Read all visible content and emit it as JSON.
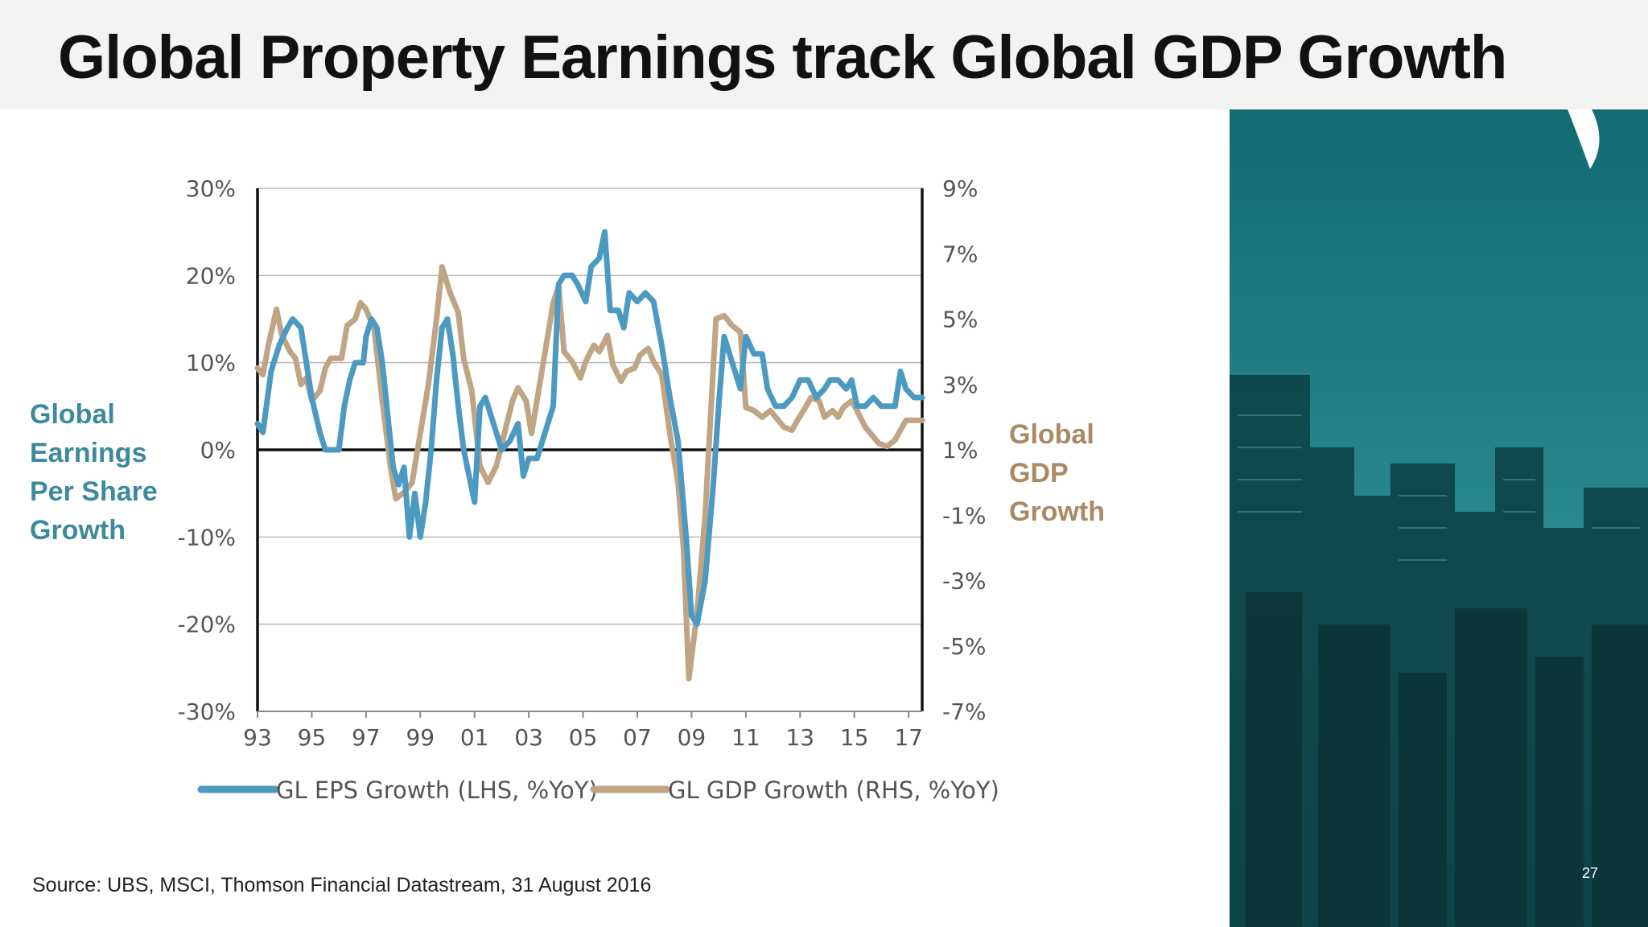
{
  "slide": {
    "title": "Global Property Earnings track Global GDP Growth",
    "left_label": [
      "Global",
      "Earnings",
      "Per Share",
      "Growth"
    ],
    "right_label": [
      "Global",
      "GDP",
      "Growth"
    ],
    "source": "Source: UBS, MSCI, Thomson Financial Datastream, 31 August 2016",
    "page_number": "27"
  },
  "colors": {
    "eps": "#4c9ac2",
    "gdp": "#bfa584",
    "left_label": "#3c8b9c",
    "right_label": "#a98a64",
    "photo_base": "#1c6c72",
    "header_band": "#f3f3f3"
  },
  "chart_data": {
    "type": "line",
    "x_tick_labels": [
      "93",
      "95",
      "97",
      "99",
      "01",
      "03",
      "05",
      "07",
      "09",
      "11",
      "13",
      "15",
      "17"
    ],
    "x_range": [
      1993,
      2017.5
    ],
    "y_left": {
      "range": [
        -30,
        30
      ],
      "ticks": [
        30,
        20,
        10,
        0,
        -10,
        -20,
        -30
      ],
      "tick_labels": [
        "30%",
        "20%",
        "10%",
        "0%",
        "-10%",
        "-20%",
        "-30%"
      ]
    },
    "y_right": {
      "range": [
        -7,
        9
      ],
      "ticks": [
        9,
        7,
        5,
        3,
        1,
        -1,
        -3,
        -5,
        -7
      ],
      "tick_labels": [
        "9%",
        "7%",
        "5%",
        "3%",
        "1%",
        "-1%",
        "-3%",
        "-5%",
        "-7%"
      ]
    },
    "grid": true,
    "legend_position": "bottom",
    "series": [
      {
        "name": "GL EPS Growth (LHS, %YoY)",
        "axis": "left",
        "points": [
          [
            1993.0,
            3
          ],
          [
            1993.2,
            2
          ],
          [
            1993.5,
            9
          ],
          [
            1993.8,
            12
          ],
          [
            1994.1,
            14
          ],
          [
            1994.3,
            15
          ],
          [
            1994.6,
            14
          ],
          [
            1994.8,
            10
          ],
          [
            1995.0,
            6
          ],
          [
            1995.3,
            2
          ],
          [
            1995.5,
            0
          ],
          [
            1995.8,
            0
          ],
          [
            1996.0,
            0
          ],
          [
            1996.2,
            5
          ],
          [
            1996.4,
            8
          ],
          [
            1996.6,
            10
          ],
          [
            1996.9,
            10
          ],
          [
            1997.0,
            13
          ],
          [
            1997.2,
            15
          ],
          [
            1997.4,
            14
          ],
          [
            1997.6,
            10
          ],
          [
            1997.8,
            4
          ],
          [
            1998.0,
            -2
          ],
          [
            1998.2,
            -4
          ],
          [
            1998.4,
            -2
          ],
          [
            1998.6,
            -10
          ],
          [
            1998.8,
            -5
          ],
          [
            1999.0,
            -10
          ],
          [
            1999.2,
            -6
          ],
          [
            1999.4,
            0
          ],
          [
            1999.6,
            8
          ],
          [
            1999.8,
            14
          ],
          [
            2000.0,
            15
          ],
          [
            2000.2,
            11
          ],
          [
            2000.4,
            5
          ],
          [
            2000.6,
            0
          ],
          [
            2000.8,
            -3
          ],
          [
            2001.0,
            -6
          ],
          [
            2001.2,
            5
          ],
          [
            2001.4,
            6
          ],
          [
            2001.6,
            4
          ],
          [
            2001.8,
            2
          ],
          [
            2002.0,
            0
          ],
          [
            2002.3,
            1
          ],
          [
            2002.6,
            3
          ],
          [
            2002.8,
            -3
          ],
          [
            2003.0,
            -1
          ],
          [
            2003.3,
            -1
          ],
          [
            2003.6,
            2
          ],
          [
            2003.9,
            5
          ],
          [
            2004.1,
            19
          ],
          [
            2004.3,
            20
          ],
          [
            2004.6,
            20
          ],
          [
            2004.8,
            19
          ],
          [
            2005.1,
            17
          ],
          [
            2005.3,
            21
          ],
          [
            2005.6,
            22
          ],
          [
            2005.8,
            25
          ],
          [
            2006.0,
            16
          ],
          [
            2006.3,
            16
          ],
          [
            2006.5,
            14
          ],
          [
            2006.7,
            18
          ],
          [
            2007.0,
            17
          ],
          [
            2007.3,
            18
          ],
          [
            2007.6,
            17
          ],
          [
            2007.9,
            12
          ],
          [
            2008.2,
            6
          ],
          [
            2008.5,
            1
          ],
          [
            2008.8,
            -10
          ],
          [
            2009.0,
            -19
          ],
          [
            2009.2,
            -20
          ],
          [
            2009.5,
            -15
          ],
          [
            2009.8,
            -4
          ],
          [
            2010.0,
            5
          ],
          [
            2010.2,
            13
          ],
          [
            2010.5,
            10
          ],
          [
            2010.8,
            7
          ],
          [
            2011.0,
            13
          ],
          [
            2011.3,
            11
          ],
          [
            2011.6,
            11
          ],
          [
            2011.8,
            7
          ],
          [
            2012.1,
            5
          ],
          [
            2012.4,
            5
          ],
          [
            2012.7,
            6
          ],
          [
            2013.0,
            8
          ],
          [
            2013.3,
            8
          ],
          [
            2013.6,
            6
          ],
          [
            2013.9,
            7
          ],
          [
            2014.1,
            8
          ],
          [
            2014.4,
            8
          ],
          [
            2014.7,
            7
          ],
          [
            2014.9,
            8
          ],
          [
            2015.1,
            5
          ],
          [
            2015.4,
            5
          ],
          [
            2015.7,
            6
          ],
          [
            2016.0,
            5
          ],
          [
            2016.2,
            5
          ],
          [
            2016.5,
            5
          ],
          [
            2016.7,
            9
          ],
          [
            2016.9,
            7
          ],
          [
            2017.2,
            6
          ],
          [
            2017.5,
            6
          ]
        ]
      },
      {
        "name": "GL GDP Growth (RHS, %YoY)",
        "axis": "right",
        "points": [
          [
            1993.0,
            3.5
          ],
          [
            1993.2,
            3.3
          ],
          [
            1993.4,
            4.2
          ],
          [
            1993.7,
            5.3
          ],
          [
            1993.9,
            4.5
          ],
          [
            1994.2,
            4.0
          ],
          [
            1994.4,
            3.8
          ],
          [
            1994.6,
            3.0
          ],
          [
            1994.8,
            3.2
          ],
          [
            1995.0,
            2.5
          ],
          [
            1995.3,
            2.8
          ],
          [
            1995.5,
            3.5
          ],
          [
            1995.7,
            3.8
          ],
          [
            1995.9,
            3.8
          ],
          [
            1996.1,
            3.8
          ],
          [
            1996.3,
            4.8
          ],
          [
            1996.6,
            5.0
          ],
          [
            1996.8,
            5.5
          ],
          [
            1997.0,
            5.3
          ],
          [
            1997.3,
            4.7
          ],
          [
            1997.6,
            2.5
          ],
          [
            1997.9,
            0.5
          ],
          [
            1998.1,
            -0.5
          ],
          [
            1998.4,
            -0.3
          ],
          [
            1998.7,
            0.0
          ],
          [
            1999.0,
            1.5
          ],
          [
            1999.3,
            3.0
          ],
          [
            1999.6,
            5.0
          ],
          [
            1999.8,
            6.6
          ],
          [
            2000.1,
            5.8
          ],
          [
            2000.4,
            5.2
          ],
          [
            2000.6,
            3.8
          ],
          [
            2000.9,
            2.8
          ],
          [
            2001.2,
            0.5
          ],
          [
            2001.5,
            0.0
          ],
          [
            2001.8,
            0.5
          ],
          [
            2002.1,
            1.5
          ],
          [
            2002.4,
            2.5
          ],
          [
            2002.6,
            2.9
          ],
          [
            2002.9,
            2.5
          ],
          [
            2003.1,
            1.5
          ],
          [
            2003.4,
            3.0
          ],
          [
            2003.6,
            4.0
          ],
          [
            2003.9,
            5.5
          ],
          [
            2004.1,
            6.0
          ],
          [
            2004.3,
            4.0
          ],
          [
            2004.6,
            3.7
          ],
          [
            2004.9,
            3.2
          ],
          [
            2005.1,
            3.7
          ],
          [
            2005.4,
            4.2
          ],
          [
            2005.6,
            4.0
          ],
          [
            2005.9,
            4.5
          ],
          [
            2006.1,
            3.6
          ],
          [
            2006.4,
            3.1
          ],
          [
            2006.6,
            3.4
          ],
          [
            2006.9,
            3.5
          ],
          [
            2007.1,
            3.9
          ],
          [
            2007.4,
            4.1
          ],
          [
            2007.6,
            3.7
          ],
          [
            2007.9,
            3.3
          ],
          [
            2008.2,
            1.5
          ],
          [
            2008.5,
            0.0
          ],
          [
            2008.7,
            -2.0
          ],
          [
            2008.9,
            -6.0
          ],
          [
            2009.2,
            -4.0
          ],
          [
            2009.5,
            -1.0
          ],
          [
            2009.7,
            2.0
          ],
          [
            2009.9,
            5.0
          ],
          [
            2010.2,
            5.1
          ],
          [
            2010.5,
            4.8
          ],
          [
            2010.8,
            4.6
          ],
          [
            2011.0,
            2.3
          ],
          [
            2011.3,
            2.2
          ],
          [
            2011.6,
            2.0
          ],
          [
            2011.9,
            2.2
          ],
          [
            2012.1,
            2.0
          ],
          [
            2012.4,
            1.7
          ],
          [
            2012.7,
            1.6
          ],
          [
            2012.9,
            1.9
          ],
          [
            2013.2,
            2.3
          ],
          [
            2013.4,
            2.6
          ],
          [
            2013.7,
            2.5
          ],
          [
            2013.9,
            2.0
          ],
          [
            2014.2,
            2.2
          ],
          [
            2014.4,
            2.0
          ],
          [
            2014.6,
            2.3
          ],
          [
            2014.9,
            2.5
          ],
          [
            2015.1,
            2.2
          ],
          [
            2015.4,
            1.7
          ],
          [
            2015.7,
            1.4
          ],
          [
            2015.9,
            1.2
          ],
          [
            2016.2,
            1.1
          ],
          [
            2016.5,
            1.3
          ],
          [
            2016.7,
            1.6
          ],
          [
            2016.9,
            1.9
          ],
          [
            2017.2,
            1.9
          ],
          [
            2017.5,
            1.9
          ]
        ]
      }
    ]
  }
}
